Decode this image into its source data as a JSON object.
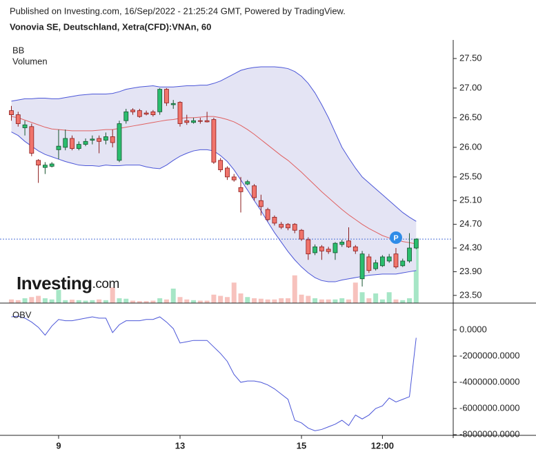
{
  "header": {
    "published": "Published on Investing.com, 16/Sep/2022 - 21:25:24 GMT, Powered by TradingView.",
    "symbol": "Vonovia SE, Deutschland, Xetra(CFD):VNAn, 60"
  },
  "logo": {
    "brand": "Investing",
    "suffix": ".com"
  },
  "event_marker": "P",
  "chart_data": [
    {
      "type": "candlestick",
      "up_color": "#2bbd6e",
      "down_color": "#f0746b",
      "up_border": "#14532d",
      "down_border": "#8b1a1a",
      "open": [
        26.62,
        26.55,
        26.33,
        26.35,
        25.78,
        25.66,
        25.68,
        25.96,
        26.0,
        26.15,
        25.98,
        26.05,
        26.12,
        26.15,
        26.12,
        26.18,
        25.78,
        26.45,
        26.63,
        26.62,
        26.58,
        26.6,
        26.6,
        26.98,
        26.72,
        26.76,
        26.45,
        26.42,
        26.45,
        26.45,
        26.47,
        25.78,
        25.65,
        25.5,
        25.32,
        25.38,
        25.35,
        25.1,
        24.95,
        24.82,
        24.7,
        24.7,
        24.7,
        24.6,
        24.44,
        24.22,
        24.32,
        24.28,
        24.22,
        24.36,
        24.42,
        24.32,
        23.78,
        24.15,
        23.95,
        24.0,
        24.08,
        24.2,
        24.0,
        24.08,
        24.3
      ],
      "high": [
        26.7,
        26.6,
        26.45,
        26.4,
        25.8,
        25.75,
        25.75,
        26.3,
        26.3,
        26.2,
        26.1,
        26.15,
        26.2,
        26.2,
        26.25,
        26.3,
        26.45,
        26.65,
        26.66,
        26.65,
        26.62,
        26.63,
        27.0,
        27.0,
        26.8,
        26.78,
        26.55,
        26.5,
        26.5,
        26.6,
        26.5,
        25.82,
        25.68,
        25.55,
        25.5,
        25.45,
        25.38,
        25.2,
        24.98,
        24.85,
        24.74,
        24.72,
        24.72,
        24.62,
        24.48,
        24.36,
        24.35,
        24.32,
        24.4,
        24.44,
        24.65,
        24.35,
        24.25,
        24.2,
        24.1,
        24.18,
        24.2,
        24.3,
        24.12,
        24.55,
        24.46
      ],
      "low": [
        26.45,
        26.35,
        26.2,
        25.85,
        25.4,
        25.55,
        25.66,
        25.8,
        25.95,
        25.95,
        25.95,
        26.02,
        26.05,
        25.9,
        26.05,
        26.0,
        25.75,
        26.4,
        26.55,
        26.5,
        26.54,
        26.52,
        26.55,
        26.7,
        26.65,
        26.35,
        26.38,
        26.4,
        26.4,
        26.42,
        25.72,
        25.58,
        25.45,
        25.42,
        24.9,
        25.36,
        25.1,
        24.85,
        24.75,
        24.68,
        24.62,
        24.6,
        24.55,
        24.42,
        24.1,
        24.18,
        24.1,
        24.2,
        24.1,
        24.32,
        24.3,
        24.2,
        23.65,
        23.88,
        23.92,
        23.98,
        24.05,
        23.95,
        23.98,
        24.05,
        24.28
      ],
      "close": [
        26.55,
        26.4,
        26.38,
        25.9,
        25.7,
        25.7,
        25.72,
        26.02,
        26.15,
        25.98,
        26.05,
        26.1,
        26.14,
        26.1,
        26.18,
        26.08,
        26.4,
        26.6,
        26.6,
        26.52,
        26.56,
        26.55,
        26.98,
        26.75,
        26.74,
        26.4,
        26.42,
        26.45,
        26.44,
        26.43,
        25.75,
        25.62,
        25.5,
        25.45,
        25.25,
        25.42,
        25.15,
        25.0,
        24.78,
        24.72,
        24.65,
        24.64,
        24.6,
        24.45,
        24.2,
        24.32,
        24.25,
        24.24,
        24.38,
        24.4,
        24.32,
        24.25,
        24.2,
        23.92,
        24.05,
        24.15,
        24.15,
        23.98,
        24.08,
        24.3,
        24.45
      ],
      "series": [
        {
          "name": "BB",
          "color": "#4a55d8",
          "fill": "#e4e4f4",
          "middle_color": "#e06060",
          "upper": [
            26.78,
            26.8,
            26.82,
            26.82,
            26.83,
            26.83,
            26.82,
            26.82,
            26.84,
            26.86,
            26.88,
            26.89,
            26.9,
            26.9,
            26.9,
            26.91,
            26.94,
            26.98,
            27.0,
            27.02,
            27.03,
            27.04,
            27.02,
            27.02,
            27.02,
            27.03,
            27.04,
            27.04,
            27.05,
            27.05,
            27.08,
            27.12,
            27.18,
            27.24,
            27.3,
            27.33,
            27.35,
            27.36,
            27.36,
            27.36,
            27.35,
            27.33,
            27.28,
            27.2,
            27.08,
            26.92,
            26.72,
            26.5,
            26.25,
            26.0,
            25.82,
            25.65,
            25.5,
            25.4,
            25.3,
            25.2,
            25.1,
            25.0,
            24.9,
            24.82,
            24.75
          ],
          "middle": [
            26.52,
            26.5,
            26.46,
            26.42,
            26.38,
            26.34,
            26.31,
            26.3,
            26.29,
            26.28,
            26.28,
            26.28,
            26.28,
            26.29,
            26.3,
            26.3,
            26.32,
            26.34,
            26.36,
            26.38,
            26.4,
            26.42,
            26.44,
            26.46,
            26.47,
            26.49,
            26.5,
            26.5,
            26.51,
            26.52,
            26.52,
            26.5,
            26.47,
            26.43,
            26.37,
            26.3,
            26.22,
            26.13,
            26.04,
            25.95,
            25.86,
            25.78,
            25.68,
            25.58,
            25.47,
            25.36,
            25.25,
            25.15,
            25.05,
            24.95,
            24.86,
            24.78,
            24.7,
            24.63,
            24.57,
            24.51,
            24.47,
            24.44,
            24.41,
            24.39,
            24.37
          ],
          "lower": [
            26.26,
            26.2,
            26.1,
            26.02,
            25.94,
            25.88,
            25.84,
            25.8,
            25.76,
            25.73,
            25.7,
            25.69,
            25.69,
            25.68,
            25.7,
            25.69,
            25.69,
            25.7,
            25.7,
            25.7,
            25.67,
            25.65,
            25.64,
            25.7,
            25.78,
            25.85,
            25.9,
            25.94,
            25.96,
            25.96,
            25.94,
            25.86,
            25.76,
            25.62,
            25.45,
            25.28,
            25.1,
            24.93,
            24.74,
            24.56,
            24.4,
            24.24,
            24.1,
            23.98,
            23.88,
            23.8,
            23.75,
            23.73,
            23.73,
            23.76,
            23.78,
            23.8,
            23.82,
            23.84,
            23.85,
            23.86,
            23.86,
            23.86,
            23.88,
            23.9,
            23.92
          ]
        },
        {
          "name": "Volumen",
          "up_color": "#a6e6c6",
          "down_color": "#f7c2bd",
          "values": [
            15000,
            12000,
            20000,
            25000,
            30000,
            20000,
            15000,
            55000,
            12000,
            14000,
            12000,
            10000,
            12000,
            15000,
            12000,
            65000,
            20000,
            18000,
            10000,
            8000,
            8000,
            10000,
            20000,
            15000,
            60000,
            25000,
            15000,
            12000,
            10000,
            10000,
            35000,
            30000,
            25000,
            85000,
            40000,
            25000,
            20000,
            18000,
            15000,
            15000,
            20000,
            20000,
            115000,
            35000,
            30000,
            20000,
            15000,
            15000,
            15000,
            20000,
            15000,
            85000,
            45000,
            20000,
            40000,
            15000,
            45000,
            15000,
            12000,
            20000,
            270000
          ]
        }
      ],
      "volume_lim": [
        0,
        400000
      ],
      "ylim": [
        23.37,
        27.79
      ],
      "yticks": [
        {
          "value": 27.5,
          "label": "27.50"
        },
        {
          "value": 27.0,
          "label": "27.00"
        },
        {
          "value": 26.5,
          "label": "26.50"
        },
        {
          "value": 26.0,
          "label": "26.00"
        },
        {
          "value": 25.5,
          "label": "25.50"
        },
        {
          "value": 25.1,
          "label": "25.10"
        },
        {
          "value": 24.7,
          "label": "24.70"
        },
        {
          "value": 24.3,
          "label": "24.30"
        },
        {
          "value": 23.9,
          "label": "23.90"
        },
        {
          "value": 23.5,
          "label": "23.50"
        }
      ]
    },
    {
      "type": "line",
      "title": "OBV",
      "categories": [
        null,
        null,
        null,
        null,
        null,
        null,
        null,
        "9",
        null,
        null,
        null,
        null,
        null,
        null,
        null,
        null,
        null,
        null,
        null,
        null,
        null,
        null,
        null,
        null,
        null,
        "13",
        null,
        null,
        null,
        null,
        null,
        null,
        null,
        null,
        null,
        null,
        null,
        null,
        null,
        null,
        null,
        null,
        null,
        "15",
        null,
        null,
        null,
        null,
        null,
        null,
        null,
        null,
        null,
        null,
        null,
        "12:00",
        null,
        null,
        null,
        null,
        null
      ],
      "series": [
        {
          "name": "OBV",
          "color": "#4a55d8",
          "values": [
            1000000,
            1050000,
            900000,
            600000,
            200000,
            -400000,
            300000,
            800000,
            700000,
            700000,
            800000,
            900000,
            1000000,
            900000,
            900000,
            -200000,
            400000,
            700000,
            700000,
            700000,
            800000,
            800000,
            1000000,
            600000,
            100000,
            -1000000,
            -900000,
            -800000,
            -800000,
            -800000,
            -1300000,
            -1800000,
            -2400000,
            -3400000,
            -4000000,
            -3900000,
            -3900000,
            -4000000,
            -4200000,
            -4500000,
            -4900000,
            -5300000,
            -6900000,
            -7100000,
            -7500000,
            -7700000,
            -7600000,
            -7400000,
            -7200000,
            -6900000,
            -7300000,
            -6500000,
            -6800000,
            -6500000,
            -6000000,
            -5800000,
            -5200000,
            -5500000,
            -5300000,
            -5100000,
            -600000
          ]
        }
      ],
      "ylim": [
        -8050000,
        1630000
      ],
      "yticks": [
        {
          "value": 0,
          "label": "0.0000"
        },
        {
          "value": -2000000,
          "label": "-2000000.0000"
        },
        {
          "value": -4000000,
          "label": "-4000000.0000"
        },
        {
          "value": -6000000,
          "label": "-6000000.0000"
        },
        {
          "value": -8000000,
          "label": "-8000000.0000"
        }
      ]
    }
  ]
}
